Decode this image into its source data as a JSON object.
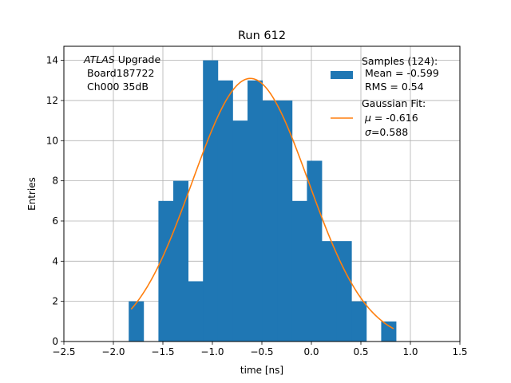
{
  "chart_data": {
    "type": "bar",
    "title": "Run 612",
    "xlabel": "time [ns]",
    "ylabel": "Entries",
    "xlim": [
      -2.5,
      1.5
    ],
    "ylim": [
      0,
      14.7
    ],
    "xticks": [
      -2.5,
      -2.0,
      -1.5,
      -1.0,
      -0.5,
      0.0,
      0.5,
      1.0,
      1.5
    ],
    "xtick_labels": [
      "−2.5",
      "−2.0",
      "−1.5",
      "−1.0",
      "−0.5",
      "0.0",
      "0.5",
      "1.0",
      "1.5"
    ],
    "yticks": [
      0,
      2,
      4,
      6,
      8,
      10,
      12,
      14
    ],
    "ytick_labels": [
      "0",
      "2",
      "4",
      "6",
      "8",
      "10",
      "12",
      "14"
    ],
    "grid": true,
    "legend_position": "top-right",
    "annotation": {
      "line1_italic": "ATLAS",
      "line1_rest": " Upgrade",
      "line2": "Board187722",
      "line3": "Ch000 35dB"
    },
    "histogram": {
      "name": "Samples (124):",
      "color": "#1f77b4",
      "bin_edges": [
        -1.845,
        -1.695,
        -1.545,
        -1.395,
        -1.245,
        -1.095,
        -0.945,
        -0.795,
        -0.645,
        -0.495,
        -0.345,
        -0.195,
        -0.045,
        0.105,
        0.255,
        0.405,
        0.555,
        0.705,
        0.855
      ],
      "counts": [
        2,
        0,
        7,
        8,
        3,
        14,
        13,
        11,
        13,
        12,
        12,
        7,
        9,
        5,
        5,
        2,
        0,
        1
      ]
    },
    "fit": {
      "name": "Gaussian Fit:",
      "color": "#ff7f0e",
      "mu": -0.616,
      "sigma": 0.588,
      "amplitude": 13.1,
      "x_range": [
        -1.82,
        0.83
      ]
    },
    "legend": {
      "samples_title": "Samples (124):",
      "samples_mean": "Mean = -0.599",
      "samples_rms": "RMS = 0.54",
      "fit_title": "Gaussian Fit:",
      "fit_mu_symbol": "μ",
      "fit_mu_value": " = -0.616",
      "fit_sigma_symbol": "σ",
      "fit_sigma_value": "=0.588"
    }
  }
}
